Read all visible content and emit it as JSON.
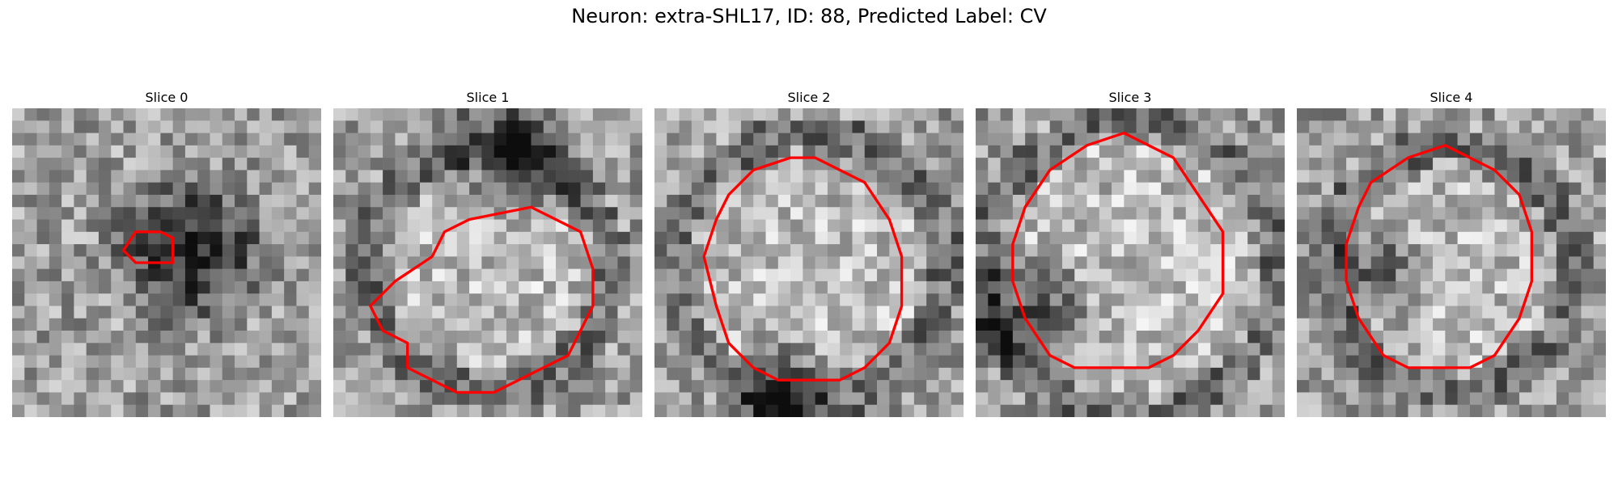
{
  "figure": {
    "title": "Neuron: extra-SHL17, ID: 88, Predicted Label: CV"
  },
  "colors": {
    "contour": "#ff0000",
    "background": "#ffffff"
  },
  "slices": [
    {
      "title": "Slice 0",
      "seed": 11,
      "contour": [
        [
          9,
          11.5
        ],
        [
          10,
          12.5
        ],
        [
          13,
          12.5
        ],
        [
          13,
          10.5
        ],
        [
          12,
          10
        ],
        [
          10,
          10
        ]
      ],
      "profile": {
        "dark_cx": 14,
        "dark_cy": 11,
        "dark_r": 8,
        "dark_strength": 0.55,
        "ring": false
      }
    },
    {
      "title": "Slice 1",
      "seed": 23,
      "contour": [
        [
          16,
          8
        ],
        [
          11,
          9
        ],
        [
          9,
          10
        ],
        [
          8,
          12
        ],
        [
          5,
          14
        ],
        [
          3,
          16
        ],
        [
          4,
          18
        ],
        [
          6,
          19
        ],
        [
          6,
          21
        ],
        [
          8,
          22
        ],
        [
          10,
          23
        ],
        [
          13,
          23
        ],
        [
          15,
          22
        ],
        [
          17,
          21
        ],
        [
          19,
          20
        ],
        [
          20,
          18
        ],
        [
          21,
          16
        ],
        [
          21,
          13
        ],
        [
          20,
          10
        ],
        [
          18,
          9
        ]
      ],
      "profile": {
        "dark_cx": 14,
        "dark_cy": 3,
        "dark_r": 7,
        "dark_strength": 0.45,
        "ring": true,
        "ring_r": 10
      }
    },
    {
      "title": "Slice 2",
      "seed": 37,
      "contour": [
        [
          11,
          4
        ],
        [
          8,
          5
        ],
        [
          6,
          7
        ],
        [
          5,
          9
        ],
        [
          4,
          12
        ],
        [
          5,
          16
        ],
        [
          6,
          19
        ],
        [
          8,
          21
        ],
        [
          10,
          22
        ],
        [
          13,
          22
        ],
        [
          15,
          22
        ],
        [
          17,
          21
        ],
        [
          19,
          19
        ],
        [
          20,
          16
        ],
        [
          20,
          12
        ],
        [
          19,
          9
        ],
        [
          17,
          6
        ],
        [
          15,
          5
        ],
        [
          13,
          4
        ]
      ],
      "profile": {
        "dark_cx": 10,
        "dark_cy": 22,
        "dark_r": 5,
        "dark_strength": 0.5,
        "ring": true,
        "ring_r": 11
      }
    },
    {
      "title": "Slice 3",
      "seed": 53,
      "contour": [
        [
          12,
          2
        ],
        [
          9,
          3
        ],
        [
          6,
          5
        ],
        [
          4,
          8
        ],
        [
          3,
          11
        ],
        [
          3,
          14
        ],
        [
          4,
          17
        ],
        [
          6,
          20
        ],
        [
          8,
          21
        ],
        [
          14,
          21
        ],
        [
          16,
          20
        ],
        [
          18,
          18
        ],
        [
          20,
          15
        ],
        [
          20,
          10
        ],
        [
          18,
          7
        ],
        [
          16,
          4
        ],
        [
          14,
          3
        ]
      ],
      "profile": {
        "dark_cx": 4,
        "dark_cy": 16,
        "dark_r": 6,
        "dark_strength": 0.5,
        "ring": true,
        "ring_r": 12
      }
    },
    {
      "title": "Slice 4",
      "seed": 71,
      "contour": [
        [
          12,
          3
        ],
        [
          9,
          4
        ],
        [
          6,
          6
        ],
        [
          5,
          8
        ],
        [
          4,
          11
        ],
        [
          4,
          14
        ],
        [
          5,
          17
        ],
        [
          7,
          20
        ],
        [
          9,
          21
        ],
        [
          11,
          21
        ],
        [
          14,
          21
        ],
        [
          16,
          20
        ],
        [
          18,
          17
        ],
        [
          19,
          14
        ],
        [
          19,
          10
        ],
        [
          18,
          7
        ],
        [
          16,
          5
        ],
        [
          14,
          4
        ]
      ],
      "profile": {
        "dark_cx": 6,
        "dark_cy": 13,
        "dark_r": 5,
        "dark_strength": 0.45,
        "ring": true,
        "ring_r": 10
      }
    }
  ]
}
